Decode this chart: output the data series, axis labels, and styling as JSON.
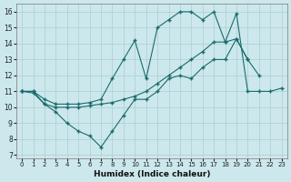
{
  "xlabel": "Humidex (Indice chaleur)",
  "background_color": "#cce8ec",
  "grid_color": "#aacdd3",
  "line_color": "#1a6b6b",
  "xlim": [
    -0.5,
    23.5
  ],
  "ylim": [
    7,
    16.5
  ],
  "xticks": [
    0,
    1,
    2,
    3,
    4,
    5,
    6,
    7,
    8,
    9,
    10,
    11,
    12,
    13,
    14,
    15,
    16,
    17,
    18,
    19,
    20,
    21,
    22,
    23
  ],
  "yticks": [
    7,
    8,
    9,
    10,
    11,
    12,
    13,
    14,
    15,
    16
  ],
  "line1_x": [
    0,
    1,
    2,
    3,
    4,
    5,
    6,
    7,
    8,
    9,
    10,
    11,
    12,
    13,
    14,
    15,
    16,
    17,
    18,
    19,
    20,
    21
  ],
  "line1_y": [
    11.0,
    11.0,
    10.2,
    9.7,
    9.0,
    8.5,
    8.2,
    7.5,
    8.5,
    9.5,
    10.5,
    10.5,
    11.0,
    11.8,
    12.0,
    11.8,
    12.5,
    13.0,
    13.0,
    14.3,
    13.0,
    12.0
  ],
  "line2_x": [
    0,
    1,
    2,
    3,
    4,
    5,
    6,
    7,
    8,
    9,
    10,
    11,
    12,
    13,
    14,
    15,
    16,
    17,
    18,
    19,
    20,
    21,
    22,
    23
  ],
  "line2_y": [
    11.0,
    10.9,
    10.2,
    10.0,
    10.0,
    10.0,
    10.1,
    10.2,
    10.3,
    10.5,
    10.7,
    11.0,
    11.5,
    12.0,
    12.5,
    13.0,
    13.5,
    14.1,
    14.1,
    15.9,
    11.0,
    11.0,
    11.0,
    11.2
  ],
  "line3_x": [
    0,
    1,
    2,
    3,
    4,
    5,
    6,
    7,
    8,
    9,
    10,
    11,
    12,
    13,
    14,
    15,
    16,
    17,
    18,
    19,
    20
  ],
  "line3_y": [
    11.0,
    11.0,
    10.5,
    10.2,
    10.2,
    10.2,
    10.3,
    10.5,
    11.8,
    13.0,
    14.2,
    11.8,
    15.0,
    15.5,
    16.0,
    16.0,
    15.5,
    16.0,
    14.1,
    14.3,
    13.0
  ]
}
